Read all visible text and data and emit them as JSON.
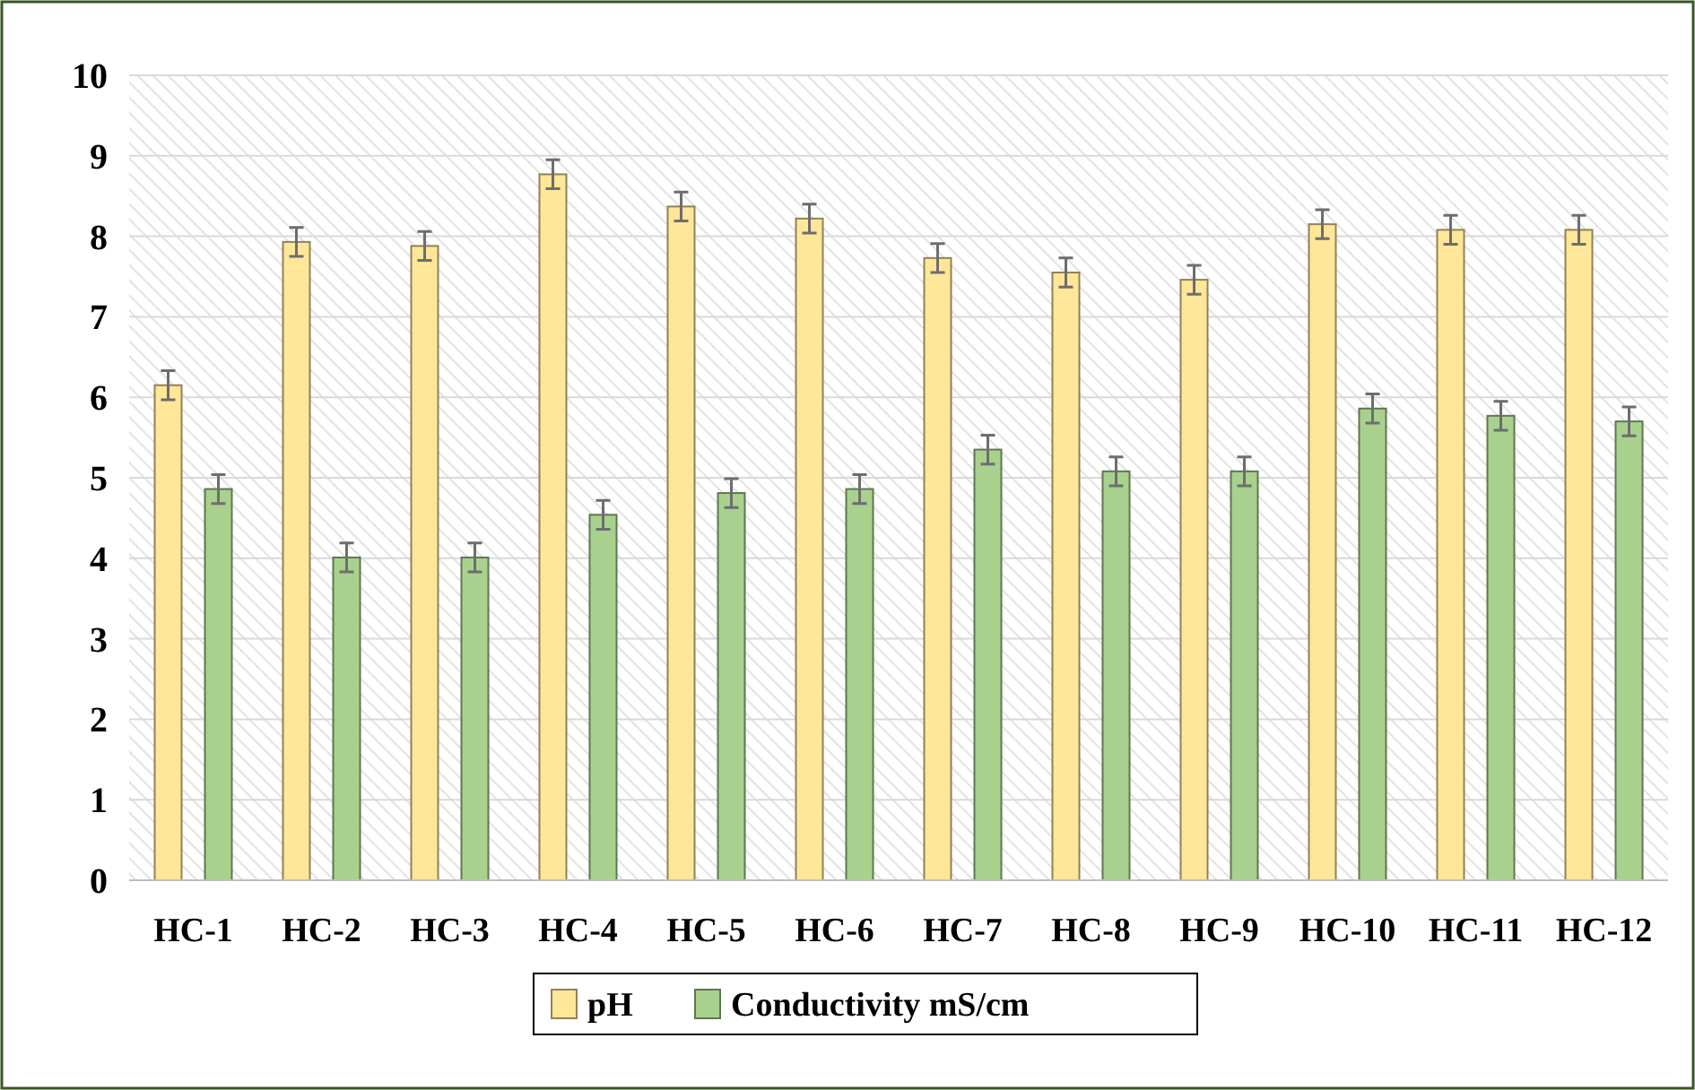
{
  "chart_data": {
    "type": "bar",
    "categories": [
      "HC-1",
      "HC-2",
      "HC-3",
      "HC-4",
      "HC-5",
      "HC-6",
      "HC-7",
      "HC-8",
      "HC-9",
      "HC-10",
      "HC-11",
      "HC-12"
    ],
    "series": [
      {
        "name": "pH",
        "color": "#ffe699",
        "values": [
          6.15,
          7.93,
          7.88,
          8.77,
          8.37,
          8.22,
          7.73,
          7.55,
          7.46,
          8.15,
          8.08,
          8.08
        ],
        "errors": [
          0.18,
          0.18,
          0.18,
          0.18,
          0.18,
          0.18,
          0.18,
          0.18,
          0.18,
          0.18,
          0.18,
          0.18
        ]
      },
      {
        "name": "Conductivity mS/cm",
        "color": "#a9d18e",
        "values": [
          4.86,
          4.01,
          4.01,
          4.54,
          4.81,
          4.86,
          5.35,
          5.08,
          5.08,
          5.86,
          5.77,
          5.7
        ],
        "errors": [
          0.18,
          0.18,
          0.18,
          0.18,
          0.18,
          0.18,
          0.18,
          0.18,
          0.18,
          0.18,
          0.18,
          0.18
        ]
      }
    ],
    "ylim": [
      0,
      10
    ],
    "yticks": [
      0,
      1,
      2,
      3,
      4,
      5,
      6,
      7,
      8,
      9,
      10
    ],
    "grid": "y",
    "legend": "bottom"
  }
}
